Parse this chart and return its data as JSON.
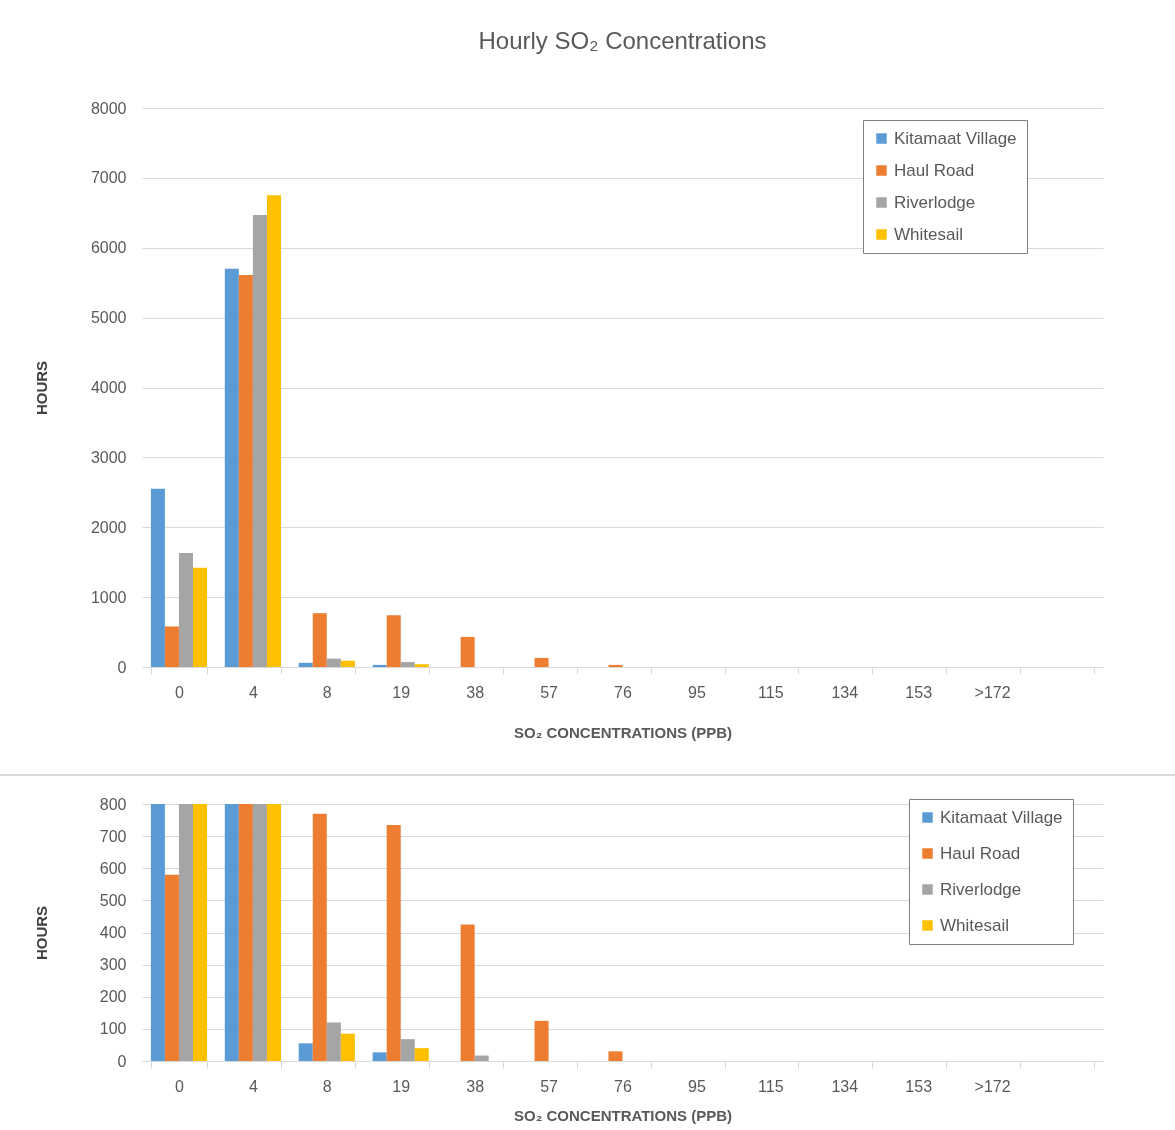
{
  "chart_data": [
    {
      "type": "bar",
      "title": "Hourly SO₂ Concentrations",
      "xlabel": "SO₂ CONCENTRATIONS (PPB)",
      "ylabel": "HOURS",
      "categories": [
        "0",
        "4",
        "8",
        "19",
        "38",
        "57",
        "76",
        "95",
        "115",
        "134",
        "153",
        ">172",
        null
      ],
      "ylim": [
        0,
        8000
      ],
      "yticks": [
        0,
        1000,
        2000,
        3000,
        4000,
        5000,
        6000,
        7000,
        8000
      ],
      "grid": "y",
      "legend": "top right",
      "series": [
        {
          "name": "Kitamaat Village",
          "color": "#5b9bd5",
          "values": [
            2550,
            5700,
            60,
            30,
            0,
            0,
            0,
            0,
            0,
            0,
            0,
            0,
            null
          ]
        },
        {
          "name": "Haul Road",
          "color": "#ed7d31",
          "values": [
            580,
            5610,
            770,
            740,
            430,
            130,
            30,
            0,
            0,
            0,
            0,
            0,
            null
          ]
        },
        {
          "name": "Riverlodge",
          "color": "#a5a5a5",
          "values": [
            1630,
            6470,
            120,
            70,
            null,
            0,
            0,
            0,
            0,
            0,
            0,
            0,
            null
          ]
        },
        {
          "name": "Whitesail",
          "color": "#ffc000",
          "values": [
            1420,
            6750,
            90,
            40,
            0,
            0,
            0,
            0,
            0,
            0,
            0,
            0,
            null
          ]
        }
      ]
    },
    {
      "type": "bar",
      "xlabel": "SO₂ CONCENTRATIONS (PPB)",
      "ylabel": "HOURS",
      "categories": [
        "0",
        "4",
        "8",
        "19",
        "38",
        "57",
        "76",
        "95",
        "115",
        "134",
        "153",
        ">172",
        null
      ],
      "ylim": [
        0,
        800
      ],
      "yticks": [
        0,
        100,
        200,
        300,
        400,
        500,
        600,
        700,
        800
      ],
      "grid": "y",
      "legend": "top right",
      "series": [
        {
          "name": "Kitamaat Village",
          "color": "#5b9bd5",
          "values": [
            800,
            800,
            55,
            27,
            0,
            0,
            0,
            0,
            0,
            0,
            0,
            0,
            null
          ]
        },
        {
          "name": "Haul Road",
          "color": "#ed7d31",
          "values": [
            580,
            800,
            770,
            735,
            425,
            125,
            30,
            0,
            0,
            0,
            0,
            0,
            null
          ]
        },
        {
          "name": "Riverlodge",
          "color": "#a5a5a5",
          "values": [
            800,
            800,
            120,
            68,
            17,
            0,
            0,
            0,
            0,
            0,
            0,
            0,
            null
          ]
        },
        {
          "name": "Whitesail",
          "color": "#ffc000",
          "values": [
            800,
            800,
            85,
            40,
            0,
            0,
            0,
            0,
            0,
            0,
            0,
            0,
            null
          ]
        }
      ]
    }
  ]
}
